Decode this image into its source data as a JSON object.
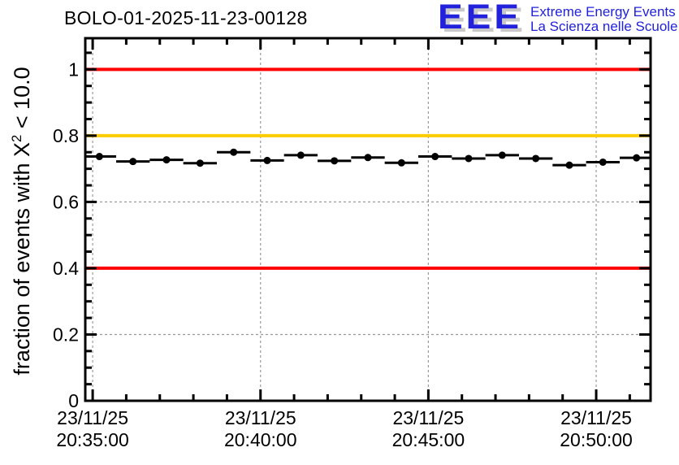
{
  "header": {
    "title": "BOLO-01-2025-11-23-00128",
    "logo": {
      "acronym": "EEE",
      "line1": "Extreme Energy Events",
      "line2": "La Scienza nelle Scuole",
      "color": "#2222dd",
      "shadow_color": "#c9c9c9"
    }
  },
  "chart_data": {
    "type": "scatter",
    "title": "BOLO-01-2025-11-23-00128",
    "xlabel": "",
    "ylabel": "fraction of events with X² < 10.0",
    "ylabel_prefix": "fraction of events with X",
    "ylabel_sup": "2",
    "ylabel_suffix": " < 10.0",
    "ylim": [
      0,
      1.094
    ],
    "xlim_minutes": [
      -0.22,
      16.62
    ],
    "x_reference": "minutes after 20:35:00 on 23/11/25",
    "grid": {
      "on": true,
      "color": "#9a9a9a",
      "dash": "3 3"
    },
    "axis_color": "#000000",
    "y_major_ticks": [
      {
        "value": 0,
        "label": "0"
      },
      {
        "value": 0.2,
        "label": "0.2"
      },
      {
        "value": 0.4,
        "label": "0.4"
      },
      {
        "value": 0.6,
        "label": "0.6"
      },
      {
        "value": 0.8,
        "label": "0.8"
      },
      {
        "value": 1.0,
        "label": "1"
      }
    ],
    "y_minor_step": 0.05,
    "x_major_ticks": [
      {
        "minutes": 0,
        "date": "23/11/25",
        "time": "20:35:00"
      },
      {
        "minutes": 5,
        "date": "23/11/25",
        "time": "20:40:00"
      },
      {
        "minutes": 10,
        "date": "23/11/25",
        "time": "20:45:00"
      },
      {
        "minutes": 15,
        "date": "23/11/25",
        "time": "20:50:00"
      }
    ],
    "x_minor_step_minutes": 1,
    "reference_lines": [
      {
        "y": 1.0,
        "color": "#ff0000",
        "name": "upper-red-limit-line"
      },
      {
        "y": 0.8,
        "color": "#ffcc00",
        "name": "orange-warning-line"
      },
      {
        "y": 0.4,
        "color": "#ff0000",
        "name": "lower-red-limit-line"
      }
    ],
    "series": [
      {
        "name": "fraction-of-events-per-minute",
        "marker": "filled-circle",
        "color": "#000000",
        "x_bin_halfwidth_minutes": 0.5,
        "x_minutes": [
          0.2,
          1.2,
          2.2,
          3.2,
          4.2,
          5.2,
          6.2,
          7.2,
          8.2,
          9.2,
          10.2,
          11.2,
          12.2,
          13.2,
          14.2,
          15.2,
          16.2
        ],
        "y": [
          0.737,
          0.722,
          0.727,
          0.717,
          0.75,
          0.725,
          0.741,
          0.724,
          0.734,
          0.718,
          0.737,
          0.731,
          0.741,
          0.731,
          0.711,
          0.72,
          0.733
        ]
      }
    ]
  }
}
